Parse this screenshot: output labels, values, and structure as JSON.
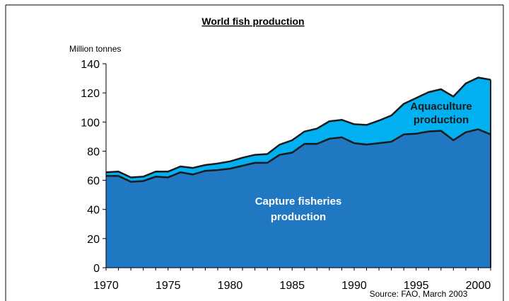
{
  "chart_data": {
    "type": "area",
    "title": "World fish production",
    "ylabel": "Million tonnes",
    "xlabel": "",
    "source": "Source: FAO, March 2003",
    "xlim": [
      1970,
      2001
    ],
    "ylim": [
      0,
      140
    ],
    "x_ticks": [
      1970,
      1975,
      1980,
      1985,
      1990,
      1995,
      2000
    ],
    "y_ticks": [
      0,
      20,
      40,
      60,
      80,
      100,
      120,
      140
    ],
    "grid": false,
    "x": [
      1970,
      1971,
      1972,
      1973,
      1974,
      1975,
      1976,
      1977,
      1978,
      1979,
      1980,
      1981,
      1982,
      1983,
      1984,
      1985,
      1986,
      1987,
      1988,
      1989,
      1990,
      1991,
      1992,
      1993,
      1994,
      1995,
      1996,
      1997,
      1998,
      1999,
      2000,
      2001
    ],
    "series": [
      {
        "name": "Capture fisheries production",
        "label_lines": [
          "Capture fisheries",
          "production"
        ],
        "color": "#1f78c1",
        "values": [
          63,
          63,
          59,
          59.5,
          62.5,
          62,
          65.5,
          64,
          66.5,
          67,
          68,
          70,
          72,
          72,
          77.5,
          79,
          85,
          85,
          88.5,
          89.5,
          85.5,
          84.5,
          85.5,
          86.5,
          91.5,
          92,
          93.5,
          94,
          87.5,
          93,
          95,
          91.5
        ]
      },
      {
        "name": "Aquaculture production",
        "label_lines": [
          "Aquaculture",
          "production"
        ],
        "color": "#00b0f0",
        "values": [
          65.5,
          66,
          62,
          62.5,
          66,
          66,
          69.5,
          68.5,
          70.5,
          71.5,
          73,
          75.5,
          77.5,
          78,
          84.5,
          87.5,
          93.5,
          95.5,
          100.5,
          101.5,
          98.5,
          98,
          101,
          104.5,
          112.5,
          116.5,
          120.5,
          122.5,
          117.5,
          126.5,
          130.5,
          129
        ]
      }
    ]
  }
}
